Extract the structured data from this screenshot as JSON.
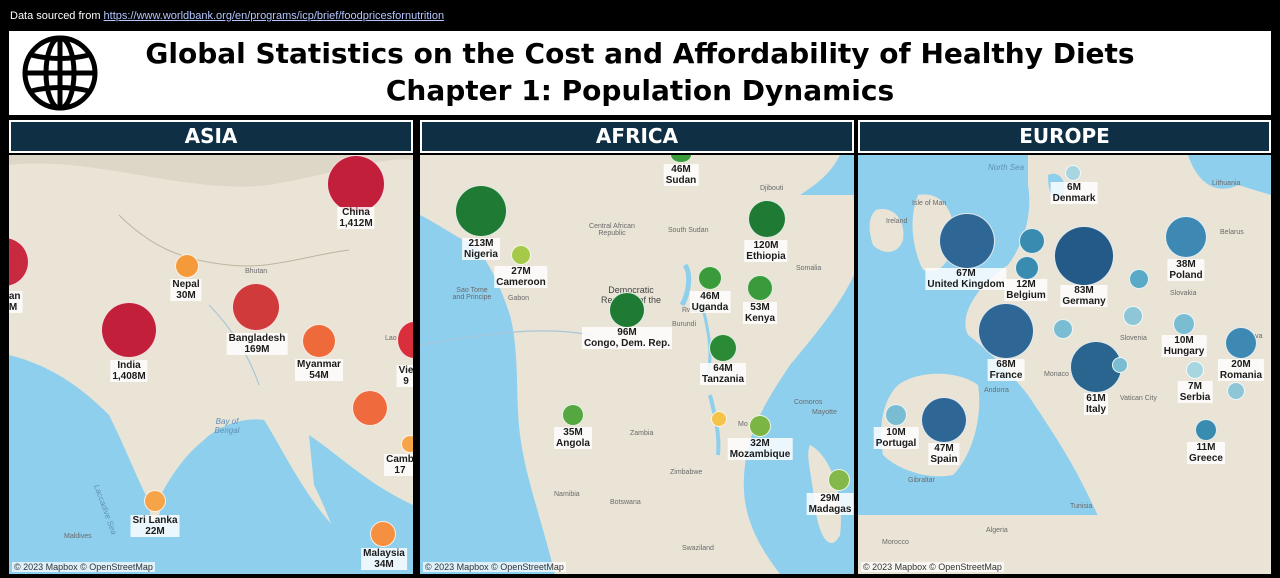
{
  "source": {
    "prefix": "Data sourced from",
    "link_text": "https://www.worldbank.org/en/programs/icp/brief/foodpricesfornutrition"
  },
  "header": {
    "logo_icon": "globe-icon",
    "title_line1": "Global Statistics on the Cost and Affordability of Healthy Diets",
    "title_line2": "Chapter 1: Population Dynamics"
  },
  "attribution": "© 2023 Mapbox © OpenStreetMap",
  "panels": [
    {
      "region": "ASIA",
      "points": [
        {
          "country": "China",
          "population": "1,412M",
          "color": "#c21f3a"
        },
        {
          "country": "Nepal",
          "population": "30M",
          "color": "#f59a3a"
        },
        {
          "country": "India",
          "population": "1,408M",
          "color": "#c21f3a"
        },
        {
          "country": "Bangladesh",
          "population": "169M",
          "color": "#d13a3a"
        },
        {
          "country": "Myanmar",
          "population": "54M",
          "color": "#ee6a3a"
        },
        {
          "country": "Sri Lanka",
          "population": "22M",
          "color": "#f5a548"
        },
        {
          "country": "Malaysia",
          "population": "34M",
          "color": "#f59040"
        },
        {
          "country": "Camb",
          "population": "17",
          "color": "#f5a548"
        },
        {
          "country": "Vie",
          "population": "9",
          "color": "#d92f3d"
        },
        {
          "country": "tan",
          "population": "M",
          "color": "#c82a3f"
        },
        {
          "country": "",
          "population": "",
          "color": "#ef6b3d"
        }
      ],
      "places": [
        "Bhutan",
        "Bay of Bengal",
        "Laccadive Sea",
        "Maldives",
        "Lao"
      ]
    },
    {
      "region": "AFRICA",
      "points": [
        {
          "country": "Sudan",
          "population": "46M",
          "color": "#3a9b3a"
        },
        {
          "country": "Nigeria",
          "population": "213M",
          "color": "#1f7a33"
        },
        {
          "country": "Cameroon",
          "population": "27M",
          "color": "#a6c94a"
        },
        {
          "country": "Ethiopia",
          "population": "120M",
          "color": "#1f7a33"
        },
        {
          "country": "Uganda",
          "population": "46M",
          "color": "#3a9b3a"
        },
        {
          "country": "Kenya",
          "population": "53M",
          "color": "#3a9b3a"
        },
        {
          "country": "Congo, Dem. Rep.",
          "population": "96M",
          "color": "#1f7a33"
        },
        {
          "country": "Tanzania",
          "population": "64M",
          "color": "#2a8a35"
        },
        {
          "country": "Angola",
          "population": "35M",
          "color": "#55a83f"
        },
        {
          "country": "Mozambique",
          "population": "32M",
          "color": "#7bb544"
        },
        {
          "country": "Madagas",
          "population": "29M",
          "color": "#84b84a"
        },
        {
          "country": "",
          "population": "",
          "color": "#f5c24a"
        }
      ],
      "places": [
        "Djibouti",
        "Central African Republic",
        "South Sudan",
        "Somalia",
        "Sao Tome and Principe",
        "Gabon",
        "Democratic Republic of the Congo",
        "Rwanda",
        "Burundi",
        "Zambia",
        "Zimbabwe",
        "Namibia",
        "Botswana",
        "Swaziland",
        "Comoros",
        "Mayotte",
        "Mo"
      ]
    },
    {
      "region": "EUROPE",
      "points": [
        {
          "country": "Denmark",
          "population": "6M",
          "color": "#a7d5e0"
        },
        {
          "country": "United Kingdom",
          "population": "67M",
          "color": "#2e6795"
        },
        {
          "country": "Belgium",
          "population": "12M",
          "color": "#3a8bb0"
        },
        {
          "country": "Germany",
          "population": "83M",
          "color": "#235a88"
        },
        {
          "country": "Poland",
          "population": "38M",
          "color": "#3d89b3"
        },
        {
          "country": "France",
          "population": "68M",
          "color": "#2e6795"
        },
        {
          "country": "Hungary",
          "population": "10M",
          "color": "#7abcd2"
        },
        {
          "country": "Romania",
          "population": "20M",
          "color": "#3d89b3"
        },
        {
          "country": "Serbia",
          "population": "7M",
          "color": "#a7d5e0"
        },
        {
          "country": "Portugal",
          "population": "10M",
          "color": "#7abcd2"
        },
        {
          "country": "Spain",
          "population": "47M",
          "color": "#2e6795"
        },
        {
          "country": "Italy",
          "population": "61M",
          "color": "#2a6590"
        },
        {
          "country": "Greece",
          "population": "11M",
          "color": "#3a8bb0"
        },
        {
          "country": "",
          "population": "",
          "color": "#3a8bb0"
        },
        {
          "country": "",
          "population": "",
          "color": "#5aa9c6"
        },
        {
          "country": "",
          "population": "",
          "color": "#7abcd2"
        },
        {
          "country": "",
          "population": "",
          "color": "#8ec6d8"
        },
        {
          "country": "",
          "population": "",
          "color": "#7abcd2"
        },
        {
          "country": "",
          "population": "",
          "color": "#8ec6d8"
        }
      ],
      "places": [
        "North Sea",
        "Isle of Man",
        "Ireland",
        "Lithuania",
        "Belarus",
        "Slovakia",
        "Slovenia",
        "Monaco",
        "Andorra",
        "Moldova",
        "Vatican City",
        "Tunisia",
        "Algeria",
        "Morocco",
        "Gibraltar"
      ]
    }
  ]
}
